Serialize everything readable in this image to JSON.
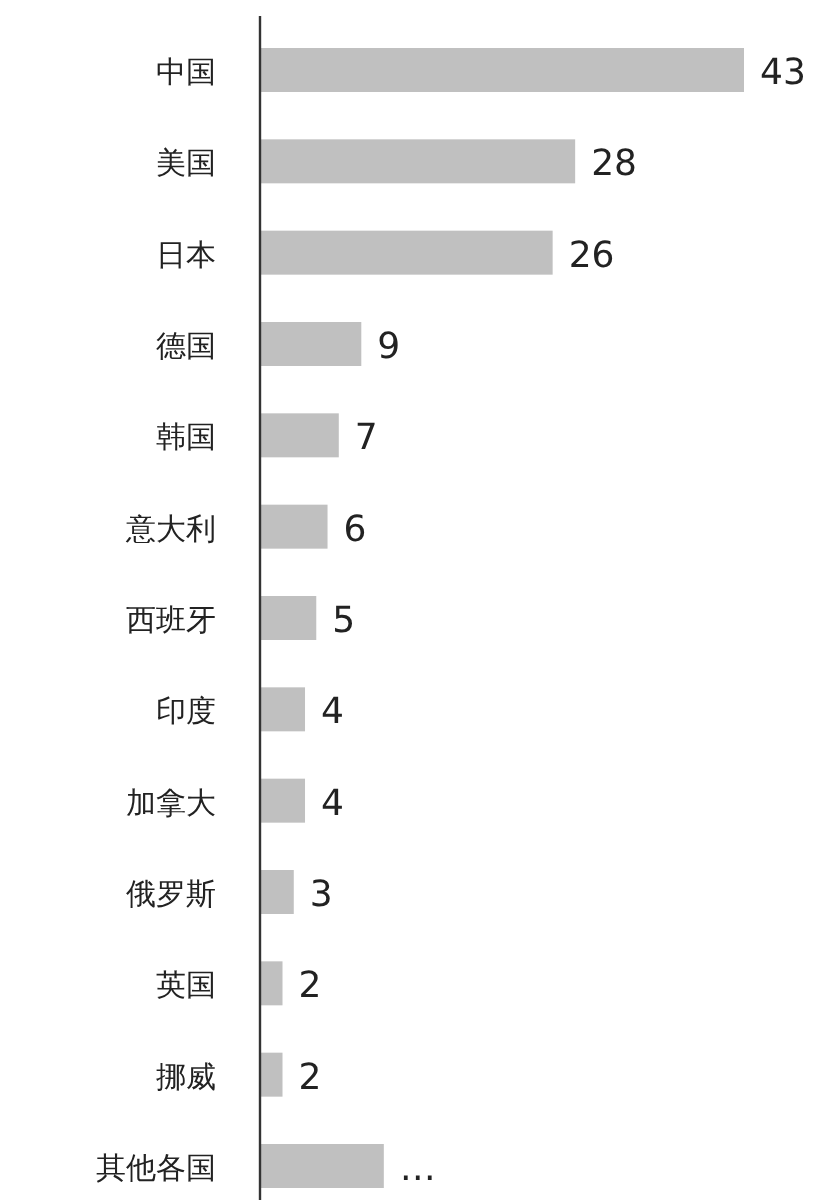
{
  "chart_data": {
    "type": "bar",
    "orientation": "horizontal",
    "color": "#c0c0c0",
    "categories": [
      "中国",
      "美国",
      "日本",
      "德国",
      "韩国",
      "意大利",
      "西班牙",
      "印度",
      "加拿大",
      "俄罗斯",
      "英国",
      "挪威",
      "其他各国"
    ],
    "values": [
      43,
      28,
      26,
      9,
      7,
      6,
      5,
      4,
      4,
      3,
      2,
      2,
      11
    ],
    "value_labels": [
      "43",
      "28",
      "26",
      "9",
      "7",
      "6",
      "5",
      "4",
      "4",
      "3",
      "2",
      "2",
      "…"
    ]
  }
}
